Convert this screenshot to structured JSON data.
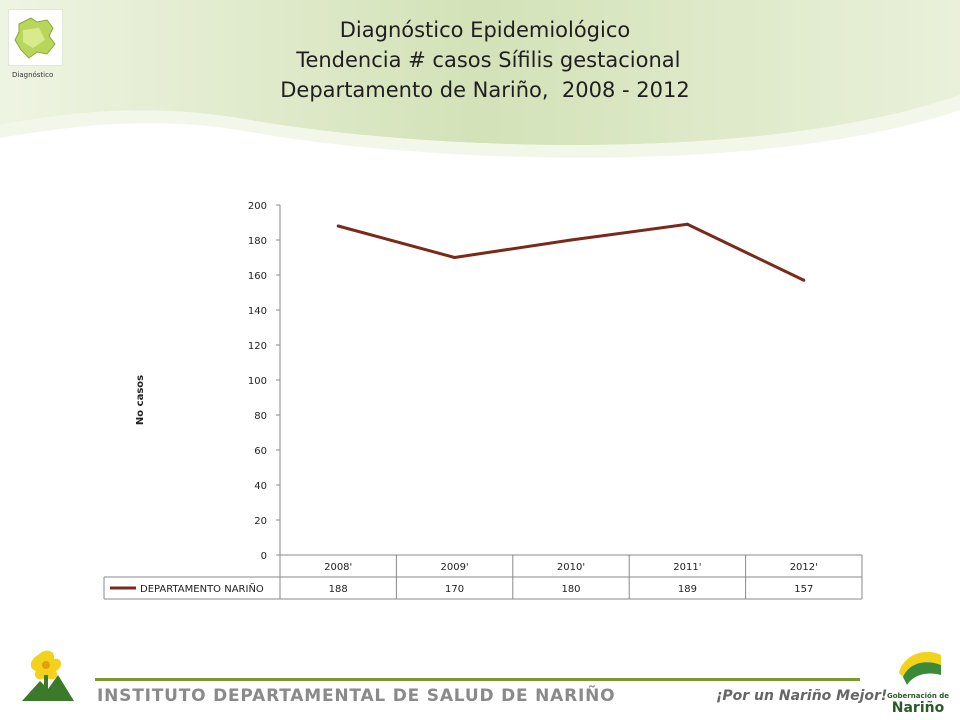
{
  "header": {
    "logo_caption": "Diagnóstico",
    "title_lines": [
      "Diagnóstico Epidemiológico",
      " Tendencia # casos Sífilis gestacional",
      "Departamento de Nariño,  2008 - 2012"
    ]
  },
  "chart_data": {
    "type": "line",
    "categories": [
      "2008'",
      "2009'",
      "2010'",
      "2011'",
      "2012'"
    ],
    "series": [
      {
        "name": "DEPARTAMENTO NARIÑO",
        "values": [
          188,
          170,
          180,
          189,
          157
        ],
        "color": "#7a2a1a"
      }
    ],
    "ylabel": "No casos",
    "ylim": [
      0,
      200
    ],
    "yticks": [
      0,
      20,
      40,
      60,
      80,
      100,
      120,
      140,
      160,
      180,
      200
    ],
    "grid": false,
    "data_table": true
  },
  "footer": {
    "institute": "INSTITUTO DEPARTAMENTAL DE SALUD DE NARIÑO",
    "slogan": "¡Por un Nariño Mejor!",
    "gob_small": "Gobernación de",
    "gob_big": "Nariño"
  },
  "colors": {
    "accent_green": "#7a9a2e",
    "line": "#7a2a1a",
    "header_band": "#d9e6c1"
  }
}
